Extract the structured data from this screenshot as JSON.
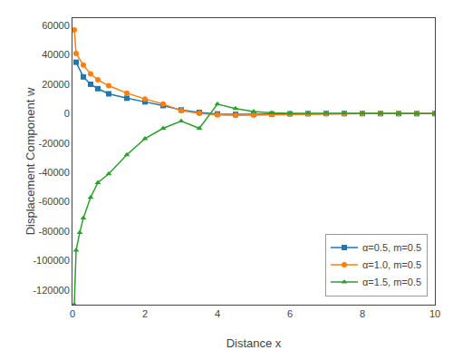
{
  "chart_data": {
    "type": "line",
    "xlabel": "Distance x",
    "ylabel": "Displacement Component w",
    "xlim": [
      0,
      10
    ],
    "ylim": [
      -130000,
      65000
    ],
    "xticks": [
      0,
      2,
      4,
      6,
      8,
      10
    ],
    "yticks": [
      -120000,
      -100000,
      -80000,
      -60000,
      -40000,
      -20000,
      0,
      20000,
      40000,
      60000
    ],
    "grid": false,
    "legend": "lower right",
    "series": [
      {
        "name": "α=0.5, m=0.5",
        "marker": "square",
        "x": [
          0.1,
          0.3,
          0.5,
          0.7,
          1.0,
          1.5,
          2.0,
          2.5,
          3.0,
          3.5,
          4.0,
          4.5,
          5.0,
          5.5,
          6.0,
          6.5,
          7.0,
          7.5,
          8.0,
          8.5,
          9.0,
          9.5,
          10.0
        ],
        "values": [
          35000,
          25000,
          20000,
          17000,
          13500,
          10500,
          8000,
          5500,
          2500,
          800,
          -200,
          -500,
          -400,
          -250,
          -100,
          0,
          100,
          50,
          30,
          20,
          10,
          5,
          0
        ]
      },
      {
        "name": "α=1.0, m=0.5",
        "marker": "circle",
        "x": [
          0.05,
          0.1,
          0.3,
          0.5,
          0.7,
          1.0,
          1.5,
          2.0,
          2.5,
          3.0,
          3.5,
          4.0,
          4.5,
          5.0,
          5.5,
          6.0,
          6.5,
          7.0,
          7.5,
          8.0,
          8.5,
          9.0,
          9.5,
          10.0
        ],
        "values": [
          57000,
          41000,
          33000,
          27000,
          23000,
          19000,
          14000,
          10000,
          6500,
          2000,
          200,
          -800,
          -1200,
          -1000,
          -600,
          -300,
          -150,
          -80,
          -40,
          -20,
          -10,
          0,
          0,
          0
        ]
      },
      {
        "name": "α=1.5, m=0.5",
        "marker": "triangle-up",
        "x": [
          0.05,
          0.1,
          0.2,
          0.3,
          0.5,
          0.7,
          1.0,
          1.5,
          2.0,
          2.5,
          3.0,
          3.5,
          4.0,
          4.5,
          5.0,
          5.5,
          6.0,
          6.5,
          7.0,
          7.5,
          8.0,
          8.5,
          9.0,
          9.5,
          10.0
        ],
        "values": [
          -130000,
          -93000,
          -81000,
          -71000,
          -57000,
          -47000,
          -41000,
          -28000,
          -17000,
          -10000,
          -5000,
          -10000,
          6500,
          3500,
          1500,
          500,
          200,
          300,
          200,
          300,
          200,
          150,
          100,
          50,
          0
        ]
      }
    ]
  }
}
